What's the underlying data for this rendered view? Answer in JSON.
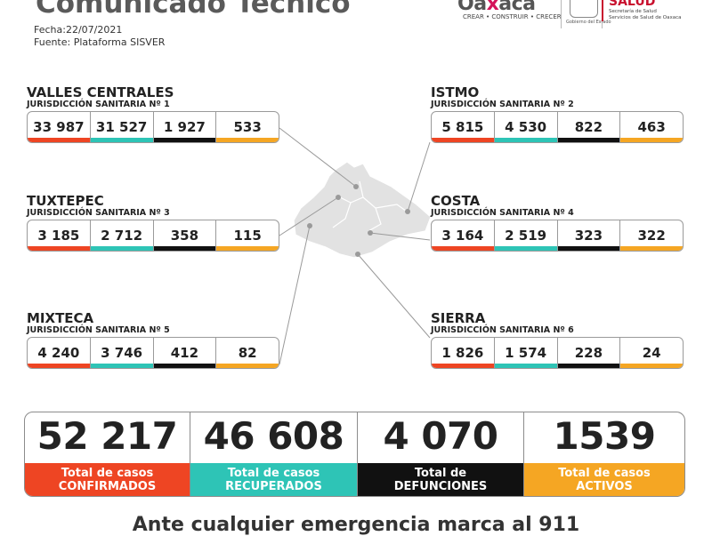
{
  "header": {
    "title": "Comunicado Técnico",
    "date": "Fecha:22/07/2021",
    "source": "Fuente: Plataforma SISVER"
  },
  "logos": {
    "oaxaca_word_a": "Oa",
    "oaxaca_word_x": "x",
    "oaxaca_word_b": "aca",
    "oaxaca_tagline": "CREAR • CONSTRUIR • CRECER",
    "gobierno_caption": "Gobierno del Estado",
    "salud_word": "SALUD",
    "salud_caption_1": "Secretaría de Salud",
    "salud_caption_2": "Servicios de Salud de Oaxaca"
  },
  "regions": {
    "valles": {
      "name": "VALLES CENTRALES",
      "sub": "JURISDICCIÓN SANITARIA Nº 1",
      "values": [
        "33 987",
        "31 527",
        "1 927",
        "533"
      ]
    },
    "istmo": {
      "name": "ISTMO",
      "sub": "JURISDICCIÓN SANITARIA Nº 2",
      "values": [
        "5 815",
        "4 530",
        "822",
        "463"
      ]
    },
    "tuxtepec": {
      "name": "TUXTEPEC",
      "sub": "JURISDICCIÓN SANITARIA Nº 3",
      "values": [
        "3 185",
        "2 712",
        "358",
        "115"
      ]
    },
    "costa": {
      "name": "COSTA",
      "sub": "JURISDICCIÓN SANITARIA Nº 4",
      "values": [
        "3 164",
        "2 519",
        "323",
        "322"
      ]
    },
    "mixteca": {
      "name": "MIXTECA",
      "sub": "JURISDICCIÓN SANITARIA Nº 5",
      "values": [
        "4 240",
        "3 746",
        "412",
        "82"
      ]
    },
    "sierra": {
      "name": "SIERRA",
      "sub": "JURISDICCIÓN SANITARIA Nº 6",
      "values": [
        "1 826",
        "1 574",
        "228",
        "24"
      ]
    }
  },
  "totals": {
    "confirmados": {
      "value": "52 217",
      "label_1": "Total de casos",
      "label_2": "CONFIRMADOS"
    },
    "recuperados": {
      "value": "46 608",
      "label_1": "Total de casos",
      "label_2": "RECUPERADOS"
    },
    "defunciones": {
      "value": "4 070",
      "label_1": "Total de",
      "label_2": "DEFUNCIONES"
    },
    "activos": {
      "value": "1539",
      "label_1": "Total de casos",
      "label_2": "ACTIVOS"
    }
  },
  "footer": "Ante cualquier emergencia marca al 911",
  "colors": {
    "confirmados": "#ee4523",
    "recuperados": "#2ec4b6",
    "defunciones": "#111111",
    "activos": "#f5a623"
  }
}
